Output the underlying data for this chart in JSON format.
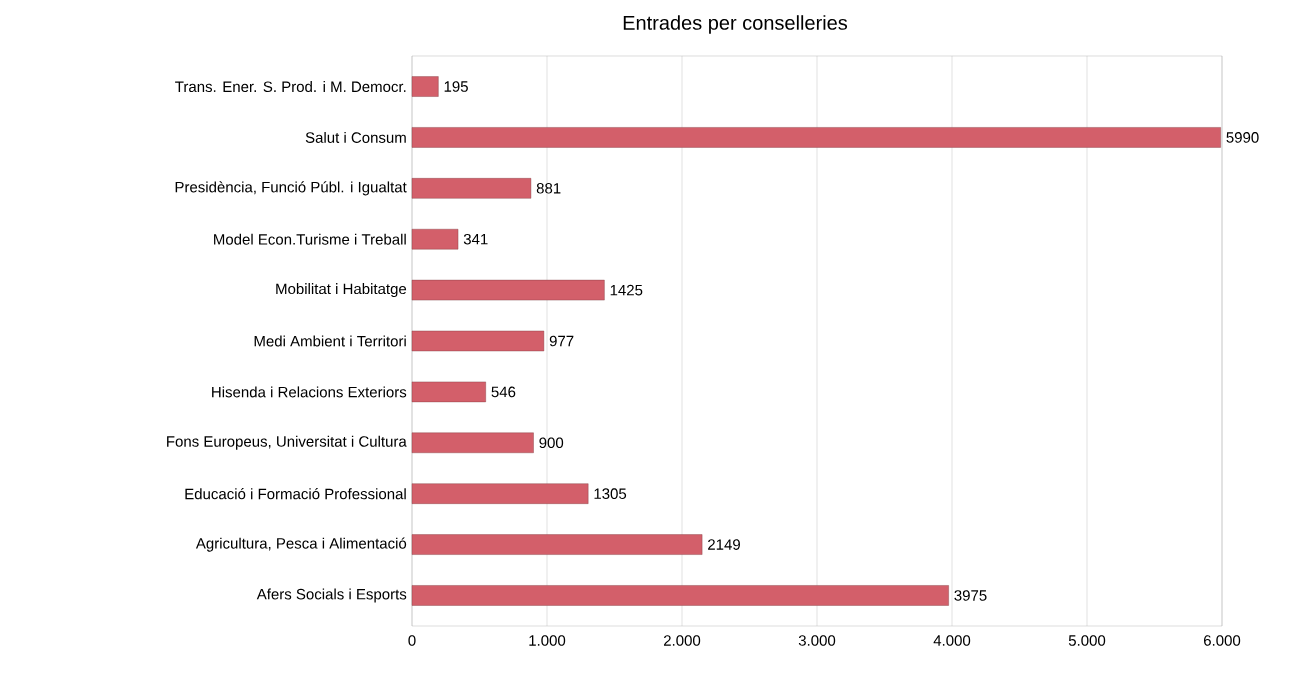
{
  "chart_data": {
    "type": "bar",
    "orientation": "horizontal",
    "title": "Entrades per conselleries",
    "categories": [
      "Trans. Ener. S. Prod. i M. Democr.",
      "Salut i Consum",
      "Presidència, Funció Públ. i Igualtat",
      "Model Econ.Turisme i Treball",
      "Mobilitat i Habitatge",
      "Medi Ambient i Territori",
      "Hisenda i Relacions Exteriors",
      "Fons Europeus, Universitat i Cultura",
      "Educació i Formació Professional",
      "Agricultura, Pesca i Alimentació",
      "Afers Socials i Esports"
    ],
    "values": [
      195,
      5990,
      881,
      341,
      1425,
      977,
      546,
      900,
      1305,
      2149,
      3975
    ],
    "data_labels": true,
    "color": "#d35f6a",
    "xlim": [
      0,
      6000
    ],
    "xticks": [
      0,
      {
        "value": 1000,
        "label": "1.000"
      },
      {
        "value": 2000,
        "label": "2.000"
      },
      {
        "value": 3000,
        "label": "3.000"
      },
      {
        "value": 4000,
        "label": "4.000"
      },
      {
        "value": 5000,
        "label": "5.000"
      },
      {
        "value": 6000,
        "label": "6.000"
      }
    ],
    "grid": "x"
  }
}
